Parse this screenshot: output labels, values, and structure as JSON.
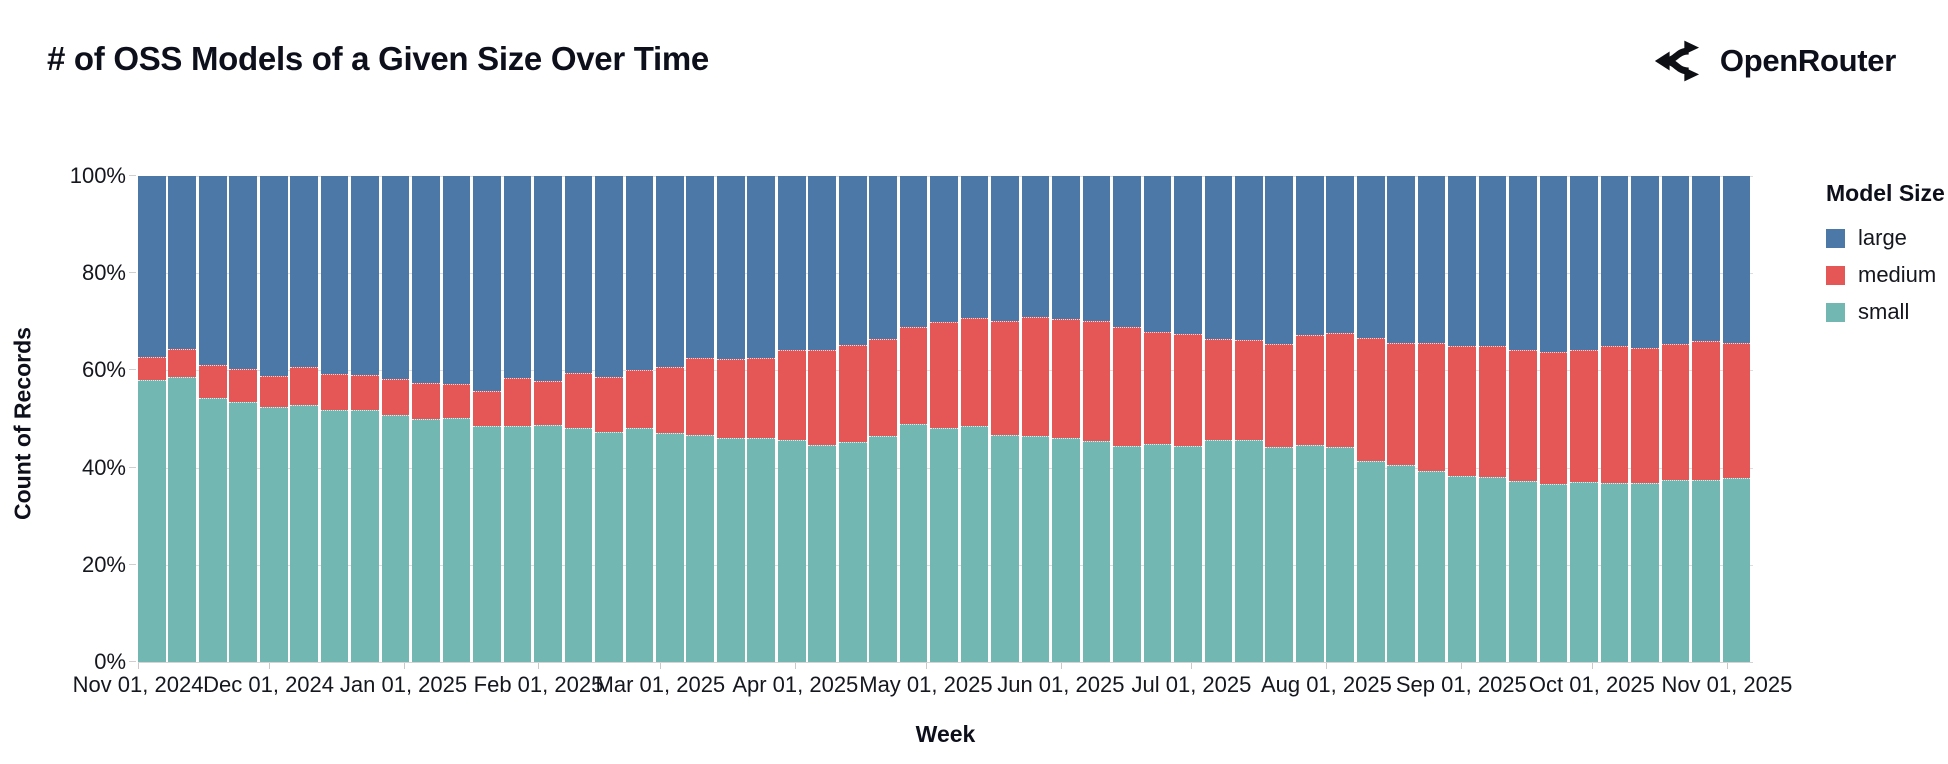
{
  "header": {
    "title": "# of OSS Models of a Given Size Over Time",
    "brand": {
      "name": "OpenRouter",
      "icon": "openrouter-logo-icon"
    }
  },
  "chart_data": {
    "type": "bar",
    "stacked": true,
    "normalized": "percent",
    "title": "# of OSS Models of a Given Size Over Time",
    "xlabel": "Week",
    "ylabel": "Count of Records",
    "ylim": [
      0,
      100
    ],
    "grid": true,
    "y_ticks": [
      "0%",
      "20%",
      "40%",
      "60%",
      "80%",
      "100%"
    ],
    "x_ticks": [
      {
        "label": "Nov 01, 2024",
        "day_offset": 0
      },
      {
        "label": "Dec 01, 2024",
        "day_offset": 30
      },
      {
        "label": "Jan 01, 2025",
        "day_offset": 61
      },
      {
        "label": "Feb 01, 2025",
        "day_offset": 92
      },
      {
        "label": "Mar 01, 2025",
        "day_offset": 120
      },
      {
        "label": "Apr 01, 2025",
        "day_offset": 151
      },
      {
        "label": "May 01, 2025",
        "day_offset": 181
      },
      {
        "label": "Jun 01, 2025",
        "day_offset": 212
      },
      {
        "label": "Jul 01, 2025",
        "day_offset": 242
      },
      {
        "label": "Aug 01, 2025",
        "day_offset": 273
      },
      {
        "label": "Sep 01, 2025",
        "day_offset": 304
      },
      {
        "label": "Oct 01, 2025",
        "day_offset": 334
      },
      {
        "label": "Nov 01, 2025",
        "day_offset": 365
      }
    ],
    "legend": {
      "title": "Model Size",
      "position": "right",
      "entries": [
        {
          "label": "large",
          "color": "#4c78a8"
        },
        {
          "label": "medium",
          "color": "#e45756"
        },
        {
          "label": "small",
          "color": "#72b7b2"
        }
      ]
    },
    "weeks": [
      "2024-11-01",
      "2024-11-08",
      "2024-11-15",
      "2024-11-22",
      "2024-11-29",
      "2024-12-06",
      "2024-12-13",
      "2024-12-20",
      "2024-12-27",
      "2025-01-03",
      "2025-01-10",
      "2025-01-17",
      "2025-01-24",
      "2025-01-31",
      "2025-02-07",
      "2025-02-14",
      "2025-02-21",
      "2025-02-28",
      "2025-03-07",
      "2025-03-14",
      "2025-03-21",
      "2025-03-28",
      "2025-04-04",
      "2025-04-11",
      "2025-04-18",
      "2025-04-25",
      "2025-05-02",
      "2025-05-09",
      "2025-05-16",
      "2025-05-23",
      "2025-05-30",
      "2025-06-06",
      "2025-06-13",
      "2025-06-20",
      "2025-06-27",
      "2025-07-04",
      "2025-07-11",
      "2025-07-18",
      "2025-07-25",
      "2025-08-01",
      "2025-08-08",
      "2025-08-15",
      "2025-08-22",
      "2025-08-29",
      "2025-09-05",
      "2025-09-12",
      "2025-09-19",
      "2025-09-26",
      "2025-10-03",
      "2025-10-10",
      "2025-10-17",
      "2025-10-24",
      "2025-10-31"
    ],
    "series": [
      {
        "name": "small",
        "color": "#72b7b2",
        "values": [
          58.1,
          58.6,
          54.3,
          53.5,
          52.4,
          52.9,
          51.8,
          51.8,
          50.9,
          50.0,
          50.2,
          48.5,
          48.5,
          48.8,
          48.1,
          47.4,
          48.1,
          47.1,
          46.8,
          46.1,
          46.1,
          45.7,
          44.7,
          45.2,
          46.4,
          49.0,
          48.1,
          48.5,
          46.8,
          46.6,
          46.1,
          45.4,
          44.5,
          44.9,
          44.4,
          45.6,
          45.7,
          44.2,
          44.7,
          44.2,
          41.3,
          40.6,
          39.2,
          38.2,
          38.1,
          37.2,
          36.7,
          37.1,
          36.9,
          36.9,
          37.5,
          37.5,
          37.9
        ]
      },
      {
        "name": "medium",
        "color": "#e45756",
        "values": [
          4.7,
          5.8,
          6.8,
          6.8,
          6.5,
          7.8,
          7.4,
          7.3,
          7.3,
          7.4,
          7.0,
          7.3,
          9.9,
          9.0,
          11.3,
          11.3,
          12.0,
          13.7,
          15.8,
          16.2,
          16.4,
          18.5,
          19.6,
          20.0,
          20.0,
          20.0,
          21.9,
          22.3,
          23.4,
          24.4,
          24.4,
          24.8,
          24.4,
          22.9,
          23.0,
          20.8,
          20.6,
          21.2,
          22.6,
          23.4,
          25.4,
          25.0,
          26.4,
          26.9,
          26.9,
          27.0,
          27.0,
          27.1,
          28.2,
          27.7,
          27.9,
          28.6,
          27.8
        ]
      },
      {
        "name": "large",
        "color": "#4c78a8",
        "values": [
          37.2,
          35.6,
          38.9,
          39.7,
          41.1,
          39.3,
          40.8,
          40.9,
          41.8,
          42.6,
          42.8,
          44.2,
          41.6,
          42.2,
          40.6,
          41.3,
          39.9,
          39.2,
          37.4,
          37.7,
          37.5,
          35.8,
          35.7,
          34.8,
          33.6,
          31.0,
          30.0,
          29.2,
          29.8,
          29.0,
          29.5,
          29.8,
          31.1,
          32.2,
          32.6,
          33.6,
          33.7,
          34.6,
          32.7,
          32.4,
          33.3,
          34.4,
          34.4,
          34.9,
          35.0,
          35.8,
          36.3,
          35.8,
          34.9,
          35.4,
          34.6,
          33.9,
          34.3
        ]
      }
    ]
  }
}
